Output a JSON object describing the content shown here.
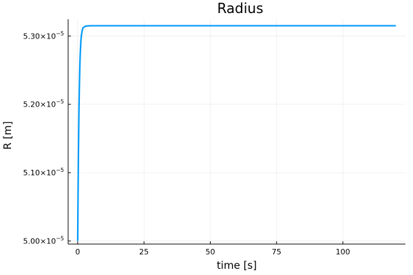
{
  "chart_data": {
    "type": "line",
    "title": "Radius",
    "xlabel": "time [s]",
    "ylabel": "R [m]",
    "xlim": [
      -3.6,
      123.6
    ],
    "ylim": [
      4.9955e-05,
      5.3245e-05
    ],
    "grid": true,
    "legend": "none",
    "x_ticks": [
      {
        "value": 0,
        "label": "0"
      },
      {
        "value": 25,
        "label": "25"
      },
      {
        "value": 50,
        "label": "50"
      },
      {
        "value": 75,
        "label": "75"
      },
      {
        "value": 100,
        "label": "100"
      }
    ],
    "y_ticks": [
      {
        "value": 5e-05,
        "mantissa": "5.00×10",
        "exponent": "−5"
      },
      {
        "value": 5.1e-05,
        "mantissa": "5.10×10",
        "exponent": "−5"
      },
      {
        "value": 5.2e-05,
        "mantissa": "5.20×10",
        "exponent": "−5"
      },
      {
        "value": 5.3e-05,
        "mantissa": "5.30×10",
        "exponent": "−5"
      }
    ],
    "series": [
      {
        "color": "#009AFA",
        "x": [
          0,
          0.1,
          0.2,
          0.3,
          0.4,
          0.5,
          0.6,
          0.7,
          0.8,
          0.9,
          1.0,
          1.2,
          1.4,
          1.7,
          2.0,
          3.0,
          5.0,
          10,
          20,
          40,
          60,
          80,
          100,
          120
        ],
        "y": [
          5e-05,
          5.048e-05,
          5.094e-05,
          5.134e-05,
          5.168e-05,
          5.196e-05,
          5.219e-05,
          5.238e-05,
          5.254e-05,
          5.267e-05,
          5.277e-05,
          5.292e-05,
          5.301e-05,
          5.308e-05,
          5.312e-05,
          5.3145e-05,
          5.315e-05,
          5.315e-05,
          5.315e-05,
          5.315e-05,
          5.315e-05,
          5.315e-05,
          5.315e-05,
          5.315e-05
        ]
      }
    ]
  }
}
